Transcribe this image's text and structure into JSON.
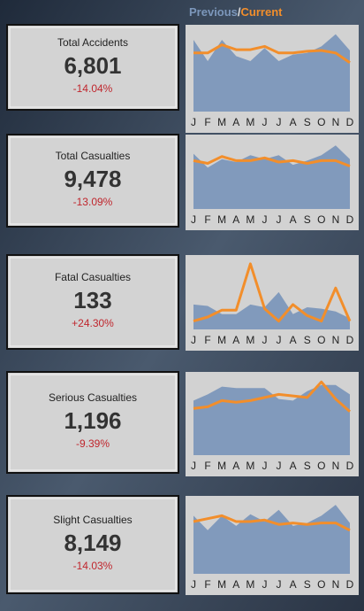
{
  "legend": [
    {
      "name": "Previous",
      "color": "#7c97bb"
    },
    {
      "name": "Current",
      "color": "#f28e2b"
    }
  ],
  "chart_data": [
    {
      "type": "area-line",
      "title": "Total Accidents",
      "kpi": "6,801",
      "change": "-14.04%",
      "categories": [
        "J",
        "F",
        "M",
        "A",
        "M",
        "J",
        "J",
        "A",
        "S",
        "O",
        "N",
        "D"
      ],
      "ylim": [
        0,
        100
      ],
      "series": [
        {
          "values": [
            88,
            62,
            88,
            68,
            62,
            78,
            62,
            70,
            72,
            80,
            95,
            75
          ]
        },
        {
          "values": [
            72,
            72,
            82,
            76,
            76,
            80,
            72,
            72,
            74,
            75,
            72,
            60
          ]
        }
      ]
    },
    {
      "type": "area-line",
      "title": "Total Casualties",
      "kpi": "9,478",
      "change": "-13.09%",
      "categories": [
        "J",
        "F",
        "M",
        "A",
        "M",
        "J",
        "J",
        "A",
        "S",
        "O",
        "N",
        "D"
      ],
      "ylim": [
        0,
        100
      ],
      "series": [
        {
          "values": [
            80,
            60,
            72,
            68,
            78,
            72,
            78,
            64,
            70,
            78,
            92,
            72
          ]
        },
        {
          "values": [
            70,
            66,
            76,
            70,
            70,
            74,
            68,
            70,
            66,
            70,
            70,
            62
          ]
        }
      ]
    },
    {
      "type": "area-line",
      "title": "Fatal Casualties",
      "kpi": "133",
      "change": "+24.30%",
      "categories": [
        "J",
        "F",
        "M",
        "A",
        "M",
        "J",
        "J",
        "A",
        "S",
        "O",
        "N",
        "D"
      ],
      "ylim": [
        0,
        100
      ],
      "series": [
        {
          "values": [
            36,
            34,
            22,
            22,
            36,
            32,
            54,
            22,
            32,
            30,
            26,
            16
          ]
        },
        {
          "values": [
            12,
            18,
            28,
            28,
            95,
            30,
            12,
            36,
            20,
            12,
            60,
            12
          ]
        }
      ]
    },
    {
      "type": "area-line",
      "title": "Serious Casualties",
      "kpi": "1,196",
      "change": "-9.39%",
      "categories": [
        "J",
        "F",
        "M",
        "A",
        "M",
        "J",
        "J",
        "A",
        "S",
        "O",
        "N",
        "D"
      ],
      "ylim": [
        0,
        100
      ],
      "series": [
        {
          "values": [
            70,
            78,
            88,
            86,
            86,
            86,
            72,
            70,
            82,
            90,
            90,
            78
          ]
        },
        {
          "values": [
            60,
            62,
            70,
            68,
            70,
            74,
            78,
            76,
            74,
            94,
            72,
            56
          ]
        }
      ]
    },
    {
      "type": "area-line",
      "title": "Slight Casualties",
      "kpi": "8,149",
      "change": "-14.03%",
      "categories": [
        "J",
        "F",
        "M",
        "A",
        "M",
        "J",
        "J",
        "A",
        "S",
        "O",
        "N",
        "D"
      ],
      "ylim": [
        0,
        100
      ],
      "series": [
        {
          "values": [
            80,
            60,
            80,
            66,
            82,
            72,
            88,
            66,
            70,
            80,
            95,
            70
          ]
        },
        {
          "values": [
            72,
            76,
            80,
            72,
            72,
            74,
            68,
            70,
            68,
            70,
            70,
            60
          ]
        }
      ]
    }
  ]
}
